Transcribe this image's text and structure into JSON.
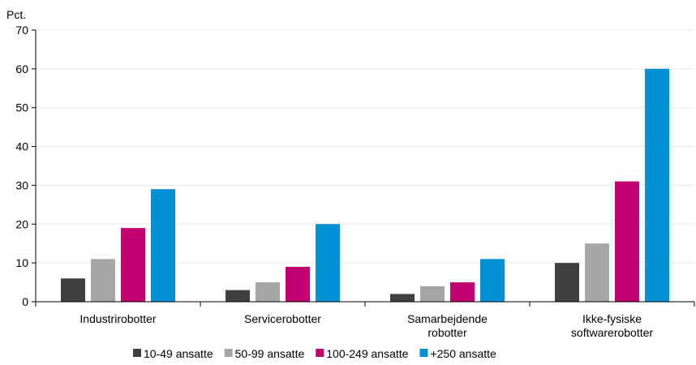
{
  "chart_data": {
    "type": "bar",
    "ylabel": "Pct.",
    "ylim": [
      0,
      70
    ],
    "yticks": [
      0,
      10,
      20,
      30,
      40,
      50,
      60,
      70
    ],
    "grid": true,
    "legend_position": "bottom",
    "categories": [
      [
        "Industrirobotter"
      ],
      [
        "Servicerobotter"
      ],
      [
        "Samarbejdende",
        "robotter"
      ],
      [
        "Ikke-fysiske",
        "softwarerobotter"
      ]
    ],
    "series": [
      {
        "name": "10-49 ansatte",
        "color": "#404040",
        "values": [
          6,
          3,
          2,
          10
        ]
      },
      {
        "name": "50-99 ansatte",
        "color": "#a6a6a6",
        "values": [
          11,
          5,
          4,
          15
        ]
      },
      {
        "name": "100-249 ansatte",
        "color": "#c0006e",
        "values": [
          19,
          9,
          5,
          31
        ]
      },
      {
        "name": "+250 ansatte",
        "color": "#0091d5",
        "values": [
          29,
          20,
          11,
          60
        ]
      }
    ]
  }
}
